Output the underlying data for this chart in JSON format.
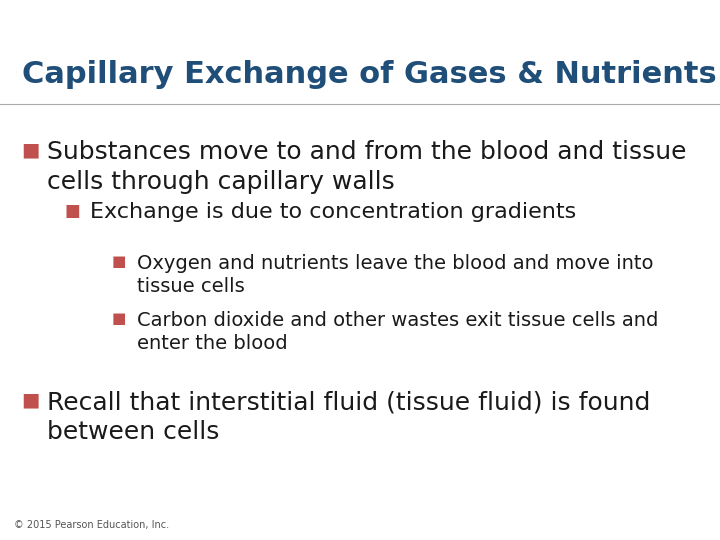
{
  "title": "Capillary Exchange of Gases & Nutrients",
  "title_color": "#1F4E79",
  "title_fontsize": 22,
  "bg_color": "#FFFFFF",
  "top_bar_color": "#2E75B6",
  "top_bar_thin_color": "#BDD7EE",
  "bottom_copyright": "© 2015 Pearson Education, Inc.",
  "bullet_color": "#C0504D",
  "text_color": "#1A1A1A",
  "bullet_char": "■",
  "separator_color": "#AAAAAA",
  "content": [
    {
      "level": 0,
      "text": "Substances move to and from the blood and tissue\ncells through capillary walls",
      "fontsize": 18
    },
    {
      "level": 1,
      "text": "Exchange is due to concentration gradients",
      "fontsize": 16
    },
    {
      "level": 2,
      "text": "Oxygen and nutrients leave the blood and move into\ntissue cells",
      "fontsize": 14
    },
    {
      "level": 2,
      "text": "Carbon dioxide and other wastes exit tissue cells and\nenter the blood",
      "fontsize": 14
    },
    {
      "level": 0,
      "text": "Recall that interstitial fluid (tissue fluid) is found\nbetween cells",
      "fontsize": 18
    }
  ],
  "bullet_indents": [
    0.03,
    0.09,
    0.155
  ],
  "text_indents": [
    0.065,
    0.125,
    0.19
  ],
  "bullet_sizes": [
    14,
    12,
    11
  ],
  "positions": [
    0.775,
    0.655,
    0.555,
    0.445,
    0.29
  ]
}
